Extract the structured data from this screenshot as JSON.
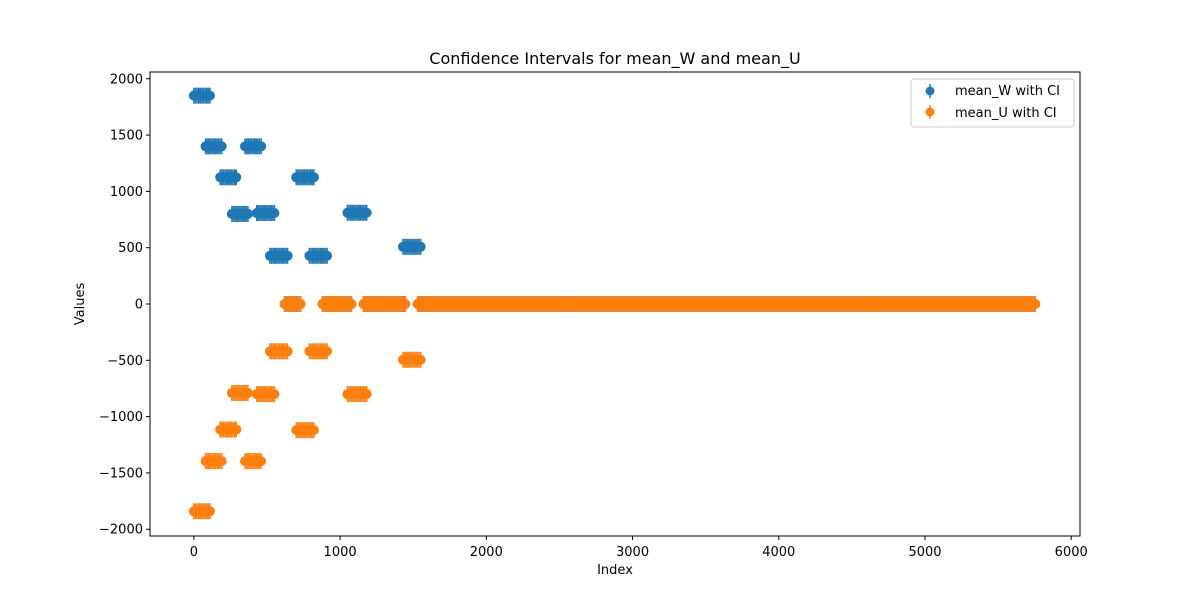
{
  "chart_data": {
    "type": "scatter",
    "title": "Confidence Intervals for mean_W and mean_U",
    "xlabel": "Index",
    "ylabel": "Values",
    "xlim": [
      -300,
      6060
    ],
    "ylim": [
      -2060,
      2060
    ],
    "x_ticks": [
      0,
      1000,
      2000,
      3000,
      4000,
      5000,
      6000
    ],
    "x_tick_labels": [
      "0",
      "1000",
      "2000",
      "3000",
      "4000",
      "5000",
      "6000"
    ],
    "y_ticks": [
      2000,
      1500,
      1000,
      500,
      0,
      -500,
      -1000,
      -1500,
      -2000
    ],
    "y_tick_labels": [
      "2000",
      "1500",
      "1000",
      "500",
      "0",
      "−500",
      "−1000",
      "−1500",
      "−2000"
    ],
    "grid": false,
    "legend_position": "upper right",
    "series": [
      {
        "name": "mean_W with CI",
        "color": "#1f77b4",
        "marker": "circle",
        "error_bars": true,
        "segments": [
          {
            "x_start": 0,
            "x_end": 110,
            "y": 1850
          },
          {
            "x_start": 80,
            "x_end": 200,
            "y": 1400
          },
          {
            "x_start": 180,
            "x_end": 290,
            "y": 1125
          },
          {
            "x_start": 260,
            "x_end": 380,
            "y": 800
          },
          {
            "x_start": 350,
            "x_end": 470,
            "y": 1400
          },
          {
            "x_start": 430,
            "x_end": 560,
            "y": 808
          },
          {
            "x_start": 520,
            "x_end": 650,
            "y": 428
          },
          {
            "x_start": 620,
            "x_end": 740,
            "y": 0
          },
          {
            "x_start": 700,
            "x_end": 830,
            "y": 1125
          },
          {
            "x_start": 790,
            "x_end": 920,
            "y": 428
          },
          {
            "x_start": 880,
            "x_end": 1080,
            "y": 0
          },
          {
            "x_start": 1050,
            "x_end": 1190,
            "y": 810
          },
          {
            "x_start": 1160,
            "x_end": 1450,
            "y": 0
          },
          {
            "x_start": 1430,
            "x_end": 1560,
            "y": 508
          },
          {
            "x_start": 1530,
            "x_end": 5760,
            "y": 0
          }
        ]
      },
      {
        "name": "mean_U with CI",
        "color": "#ff7f0e",
        "marker": "circle",
        "error_bars": true,
        "segments": [
          {
            "x_start": 0,
            "x_end": 110,
            "y": -1840
          },
          {
            "x_start": 80,
            "x_end": 200,
            "y": -1395
          },
          {
            "x_start": 180,
            "x_end": 290,
            "y": -1115
          },
          {
            "x_start": 260,
            "x_end": 380,
            "y": -790
          },
          {
            "x_start": 350,
            "x_end": 470,
            "y": -1395
          },
          {
            "x_start": 430,
            "x_end": 560,
            "y": -800
          },
          {
            "x_start": 520,
            "x_end": 650,
            "y": -420
          },
          {
            "x_start": 620,
            "x_end": 740,
            "y": 0
          },
          {
            "x_start": 700,
            "x_end": 830,
            "y": -1120
          },
          {
            "x_start": 790,
            "x_end": 920,
            "y": -420
          },
          {
            "x_start": 880,
            "x_end": 1080,
            "y": 0
          },
          {
            "x_start": 1050,
            "x_end": 1190,
            "y": -800
          },
          {
            "x_start": 1160,
            "x_end": 1450,
            "y": 0
          },
          {
            "x_start": 1430,
            "x_end": 1560,
            "y": -495
          },
          {
            "x_start": 1530,
            "x_end": 5760,
            "y": 0
          }
        ]
      }
    ]
  }
}
